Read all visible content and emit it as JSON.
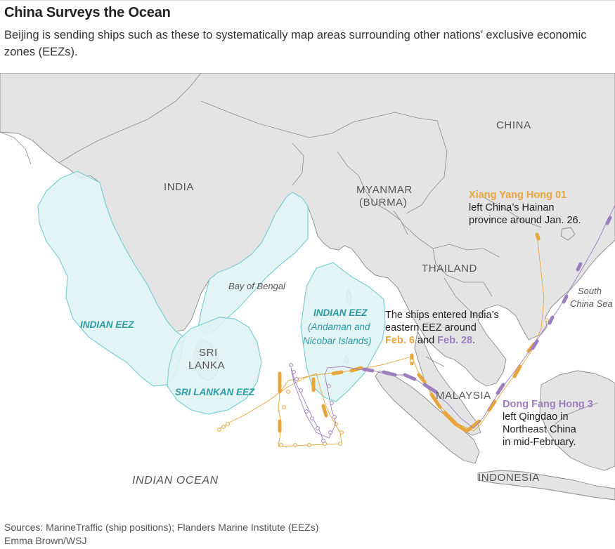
{
  "header": {
    "title": "China Surveys the Ocean",
    "subtitle": "Beijing is sending ships such as these to systematically map areas surrounding other nations’ exclusive economic zones (EEZs)."
  },
  "map": {
    "labels": {
      "china": "CHINA",
      "india": "INDIA",
      "myanmar_line1": "MYANMAR",
      "myanmar_line2": "(BURMA)",
      "thailand": "THAILAND",
      "malaysia": "MALAYSIA",
      "indonesia": "INDONESIA",
      "sri_lanka_line1": "SRI",
      "sri_lanka_line2": "LANKA",
      "bay_of_bengal": "Bay of Bengal",
      "south_china_sea_line1": "South",
      "south_china_sea_line2": "China Sea",
      "indian_ocean": "INDIAN OCEAN"
    },
    "eez_labels": {
      "indian_eez_west": "INDIAN EEZ",
      "indian_eez_east": "INDIAN EEZ",
      "andaman_line1": "(Andaman and",
      "andaman_line2": "Nicobar Islands)",
      "sri_lankan_eez": "SRI LANKAN EEZ"
    },
    "annotations": {
      "xyh_name": "Xiang Yang Hong 01",
      "xyh_line2": "left China’s Hainan",
      "xyh_line3": "province around Jan. 26.",
      "entered_line1": "The ships entered India’s",
      "entered_line2": "eastern EEZ around",
      "entered_date1": "Feb. 6",
      "entered_and": " and ",
      "entered_date2": "Feb. 28",
      "entered_period": ".",
      "dfh_name": "Dong Fang Hong 3",
      "dfh_line2": "left Qingdao in",
      "dfh_line3": "Northeast China",
      "dfh_line4": "in mid-February."
    },
    "colors": {
      "land": "#e4e4e4",
      "sea": "#ffffff",
      "border": "#8a8a8a",
      "eez_fill": "#dff3f4",
      "eez_stroke": "#7fcfd3",
      "eez_text": "#2a9aa3",
      "xiang_yang_hong": "#e8a53a",
      "dong_fang_hong": "#9b7fbf"
    }
  },
  "footer": {
    "sources": "Sources: MarineTraffic (ship positions); Flanders Marine Institute (EEZs)",
    "credit": "Emma Brown/WSJ"
  }
}
